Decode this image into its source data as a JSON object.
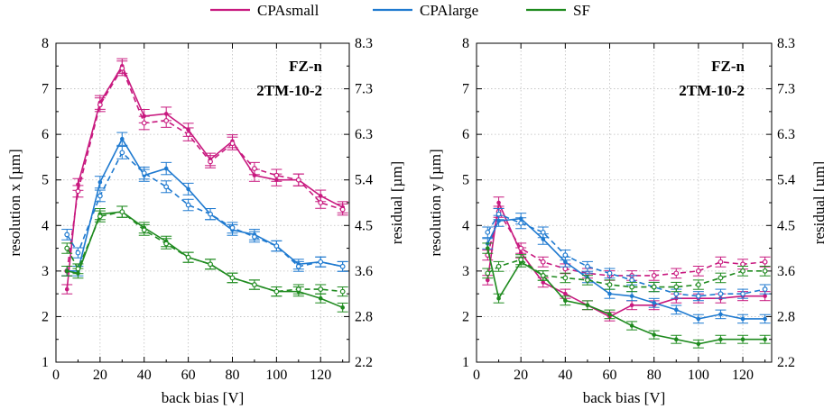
{
  "legend": [
    {
      "name": "CPAsmall",
      "color": "#c8197f"
    },
    {
      "name": "CPAlarge",
      "color": "#1f7ad0"
    },
    {
      "name": "SF",
      "color": "#1e8a1e"
    }
  ],
  "chart_data": [
    {
      "type": "line",
      "panel": "left",
      "annotation": [
        "FZ-n",
        "2TM-10-2"
      ],
      "xlabel": "back bias [V]",
      "ylabel": "resolution x [µm]",
      "y2label": "residual [µm]",
      "xlim": [
        0,
        133
      ],
      "ylim": [
        1,
        8
      ],
      "xticks": [
        "0",
        "20",
        "40",
        "60",
        "80",
        "100",
        "120"
      ],
      "yticks": [
        "1",
        "2",
        "3",
        "4",
        "5",
        "6",
        "7",
        "8"
      ],
      "y2ticks": [
        "2.2",
        "2.8",
        "3.6",
        "4.5",
        "5.4",
        "6.3",
        "7.3",
        "8.3"
      ],
      "grid": true,
      "x": [
        5,
        10,
        20,
        30,
        40,
        50,
        60,
        70,
        80,
        90,
        100,
        110,
        120,
        130
      ],
      "series": [
        {
          "name": "CPAsmall",
          "style": "solid",
          "values": [
            2.6,
            4.9,
            6.7,
            7.5,
            6.4,
            6.45,
            6.1,
            5.45,
            5.85,
            5.1,
            5.0,
            5.0,
            4.65,
            4.4
          ]
        },
        {
          "name": "CPAsmall",
          "style": "dashed",
          "values": [
            3.0,
            4.75,
            6.65,
            7.45,
            6.25,
            6.3,
            6.0,
            5.4,
            5.8,
            5.25,
            5.1,
            5.0,
            4.5,
            4.35
          ]
        },
        {
          "name": "CPAlarge",
          "style": "solid",
          "values": [
            3.0,
            3.0,
            4.95,
            5.9,
            5.1,
            5.25,
            4.8,
            4.25,
            3.9,
            3.8,
            3.55,
            3.15,
            3.2,
            3.1
          ]
        },
        {
          "name": "CPAlarge",
          "style": "dashed",
          "values": [
            3.8,
            3.4,
            4.65,
            5.6,
            5.15,
            4.85,
            4.45,
            4.25,
            3.95,
            3.75,
            3.55,
            3.1,
            3.2,
            3.1
          ]
        },
        {
          "name": "SF",
          "style": "solid",
          "values": [
            3.0,
            2.95,
            4.25,
            4.3,
            3.95,
            3.65,
            3.3,
            3.15,
            2.85,
            2.7,
            2.55,
            2.55,
            2.4,
            2.2
          ]
        },
        {
          "name": "SF",
          "style": "dashed",
          "values": [
            3.5,
            3.05,
            4.2,
            4.3,
            3.9,
            3.6,
            3.3,
            3.15,
            2.85,
            2.7,
            2.55,
            2.6,
            2.6,
            2.55
          ]
        }
      ]
    },
    {
      "type": "line",
      "panel": "right",
      "annotation": [
        "FZ-n",
        "2TM-10-2"
      ],
      "xlabel": "back bias [V]",
      "ylabel": "resolution y [µm]",
      "y2label": "residual [µm]",
      "xlim": [
        0,
        133
      ],
      "ylim": [
        1,
        8
      ],
      "xticks": [
        "0",
        "20",
        "40",
        "60",
        "80",
        "100",
        "120"
      ],
      "yticks": [
        "1",
        "2",
        "3",
        "4",
        "5",
        "6",
        "7",
        "8"
      ],
      "y2ticks": [
        "2.2",
        "2.8",
        "3.6",
        "4.5",
        "5.4",
        "6.3",
        "7.3",
        "8.3"
      ],
      "grid": true,
      "x": [
        5,
        10,
        20,
        30,
        40,
        50,
        60,
        70,
        80,
        90,
        100,
        110,
        120,
        130
      ],
      "series": [
        {
          "name": "CPAsmall",
          "style": "solid",
          "values": [
            2.8,
            4.5,
            3.4,
            2.75,
            2.5,
            2.25,
            2.0,
            2.25,
            2.25,
            2.4,
            2.4,
            2.4,
            2.45,
            2.45
          ]
        },
        {
          "name": "CPAsmall",
          "style": "dashed",
          "values": [
            3.35,
            4.3,
            3.5,
            3.2,
            3.05,
            2.95,
            2.9,
            2.9,
            2.9,
            2.95,
            3.0,
            3.2,
            3.15,
            3.2
          ]
        },
        {
          "name": "CPAlarge",
          "style": "solid",
          "values": [
            3.6,
            4.1,
            4.15,
            3.7,
            3.2,
            2.85,
            2.5,
            2.45,
            2.3,
            2.15,
            1.95,
            2.05,
            1.95,
            1.95
          ]
        },
        {
          "name": "CPAlarge",
          "style": "dashed",
          "values": [
            3.85,
            4.25,
            4.05,
            3.85,
            3.35,
            3.1,
            2.95,
            2.8,
            2.65,
            2.5,
            2.45,
            2.5,
            2.5,
            2.6
          ]
        },
        {
          "name": "SF",
          "style": "solid",
          "values": [
            3.5,
            2.4,
            3.2,
            2.9,
            2.35,
            2.25,
            2.05,
            1.8,
            1.6,
            1.5,
            1.4,
            1.5,
            1.5,
            1.5
          ]
        },
        {
          "name": "SF",
          "style": "dashed",
          "values": [
            2.95,
            3.1,
            3.25,
            2.9,
            2.85,
            2.8,
            2.7,
            2.65,
            2.65,
            2.65,
            2.7,
            2.85,
            3.0,
            3.0
          ]
        }
      ]
    }
  ]
}
